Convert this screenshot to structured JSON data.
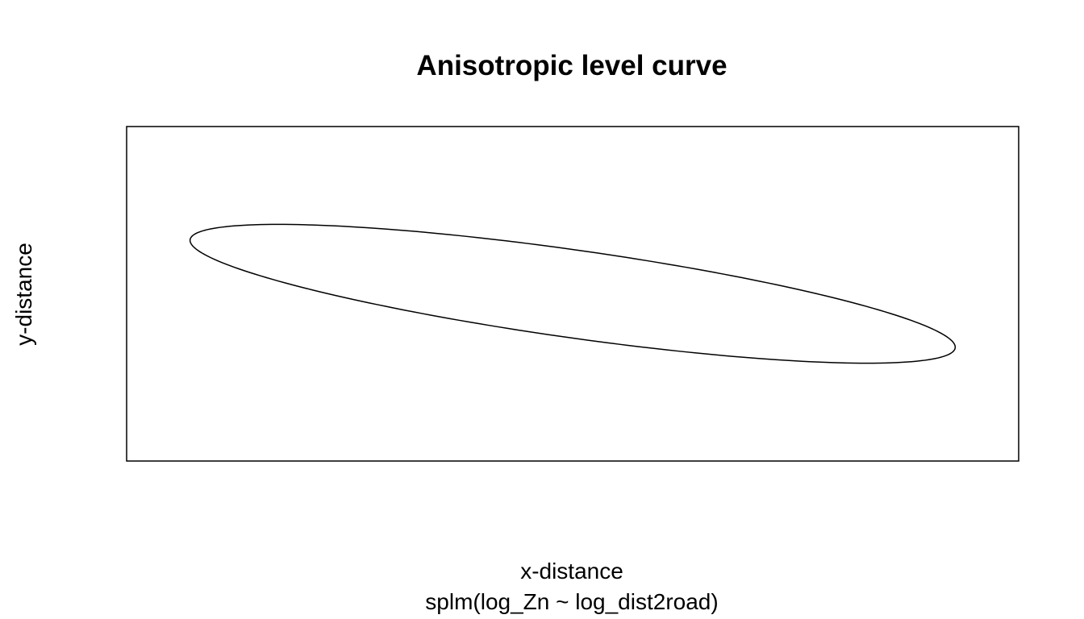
{
  "chart_data": {
    "type": "line",
    "title": "Anisotropic level curve",
    "xlabel": "x-distance",
    "ylabel": "y-distance",
    "subtitle": "splm(log_Zn ~ log_dist2road)",
    "axes_visible": false,
    "grid": false,
    "xlim": [
      -1.1,
      1.1
    ],
    "ylim": [
      -1.0,
      1.0
    ],
    "series": [
      {
        "name": "level curve",
        "shape": "ellipse",
        "center": [
          0,
          0
        ],
        "semi_major": 1.0,
        "semi_minor": 0.25,
        "angle_deg": -20,
        "color": "#000000"
      }
    ]
  }
}
